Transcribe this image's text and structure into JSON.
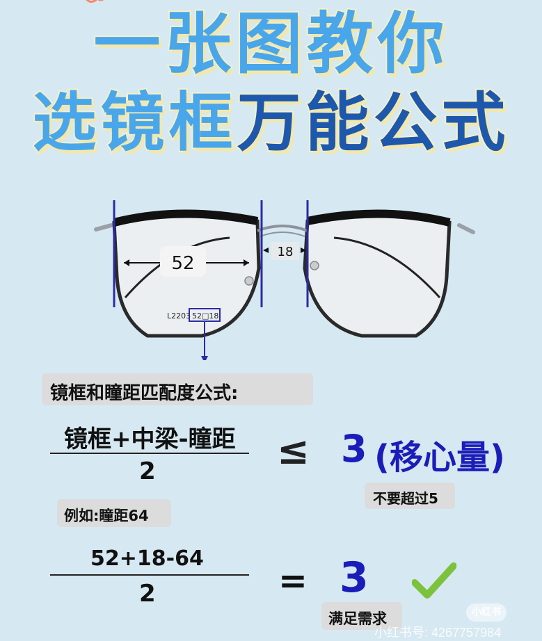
{
  "title": {
    "line1": "一张图教你",
    "line2_a": "选镜框",
    "line2_b": "万能公式"
  },
  "glasses": {
    "lens_width": "52",
    "bridge_width": "18",
    "model_label": "L2203",
    "size_label": "52□18"
  },
  "formula_heading": "镜框和瞳距匹配度公式:",
  "formula": {
    "numerator": "镜框+中梁-瞳距",
    "denominator": "2",
    "operator": "≤",
    "result_value": "3",
    "result_text": "(移心量)",
    "limit_note": "不要超过5"
  },
  "example": {
    "label": "例如:瞳距64",
    "numerator": "52+18-64",
    "denominator": "2",
    "operator": "=",
    "result_value": "3",
    "verdict": "满足需求"
  },
  "watermark": {
    "logo": "小红书",
    "text": "小红书号: 4267757984"
  },
  "colors": {
    "background": "#d6e8f2",
    "title_light": "#4aa6ea",
    "title_dark": "#1e58ad",
    "result_blue": "#1b1db8",
    "check_green": "#7cc23c"
  }
}
